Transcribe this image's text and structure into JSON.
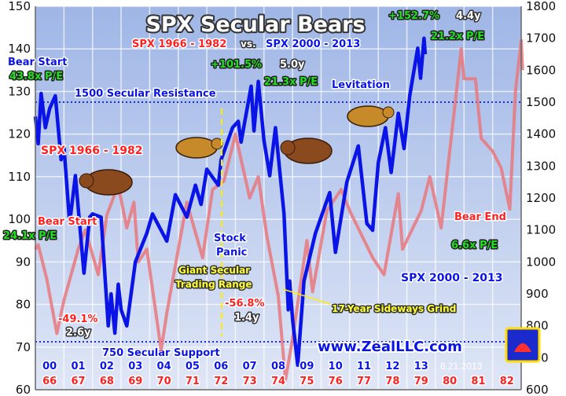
{
  "chart_data": {
    "type": "line",
    "title": "SPX Secular Bears",
    "subtitle": {
      "left": "SPX 1966 - 1982",
      "mid": "vs.",
      "right": "SPX 2000 - 2013"
    },
    "left_axis": {
      "range": [
        60,
        150
      ],
      "ticks": [
        "60",
        "70",
        "80",
        "90",
        "100",
        "110",
        "120",
        "130",
        "140",
        "150"
      ]
    },
    "right_axis": {
      "range": [
        600,
        1800
      ],
      "ticks": [
        "600",
        "700",
        "800",
        "900",
        "1000",
        "1100",
        "1200",
        "1300",
        "1400",
        "1500",
        "1600",
        "1700",
        "1800"
      ]
    },
    "x_labels_blue": [
      "00",
      "01",
      "02",
      "03",
      "04",
      "05",
      "06",
      "07",
      "08",
      "09",
      "10",
      "11",
      "12",
      "13"
    ],
    "x_labels_red": [
      "66",
      "67",
      "68",
      "69",
      "70",
      "71",
      "72",
      "73",
      "74",
      "75",
      "76",
      "77",
      "78",
      "79",
      "80",
      "81",
      "82"
    ],
    "grid": true,
    "colors": {
      "blue_series": "#0a14e6",
      "red_series": "#e8787c",
      "background_top": "#9fb6e6",
      "background_bottom": "#d8e2f4",
      "green_label": "#22dd22",
      "yellow_label": "#ffff33"
    },
    "series": [
      {
        "name": "SPX 2000 - 2013",
        "axis": "right",
        "color": "#0a14e6",
        "points": [
          [
            2000.0,
            1455
          ],
          [
            2000.1,
            1370
          ],
          [
            2000.2,
            1527
          ],
          [
            2000.35,
            1420
          ],
          [
            2000.5,
            1480
          ],
          [
            2000.7,
            1520
          ],
          [
            2000.9,
            1320
          ],
          [
            2001.0,
            1360
          ],
          [
            2001.2,
            1120
          ],
          [
            2001.4,
            1270
          ],
          [
            2001.7,
            965
          ],
          [
            2001.9,
            1140
          ],
          [
            2002.0,
            1150
          ],
          [
            2002.3,
            1140
          ],
          [
            2002.55,
            800
          ],
          [
            2002.65,
            900
          ],
          [
            2002.78,
            777
          ],
          [
            2002.9,
            930
          ],
          [
            2003.0,
            850
          ],
          [
            2003.2,
            800
          ],
          [
            2003.5,
            1000
          ],
          [
            2003.9,
            1090
          ],
          [
            2004.1,
            1150
          ],
          [
            2004.6,
            1065
          ],
          [
            2004.9,
            1210
          ],
          [
            2005.3,
            1140
          ],
          [
            2005.6,
            1240
          ],
          [
            2005.8,
            1180
          ],
          [
            2006.0,
            1290
          ],
          [
            2006.4,
            1240
          ],
          [
            2006.5,
            1320
          ],
          [
            2006.9,
            1420
          ],
          [
            2007.1,
            1440
          ],
          [
            2007.2,
            1375
          ],
          [
            2007.55,
            1550
          ],
          [
            2007.65,
            1410
          ],
          [
            2007.8,
            1565
          ],
          [
            2008.0,
            1380
          ],
          [
            2008.2,
            1270
          ],
          [
            2008.4,
            1420
          ],
          [
            2008.7,
            1150
          ],
          [
            2008.85,
            850
          ],
          [
            2008.9,
            940
          ],
          [
            2009.0,
            820
          ],
          [
            2009.18,
            677
          ],
          [
            2009.4,
            940
          ],
          [
            2009.8,
            1090
          ],
          [
            2010.3,
            1217
          ],
          [
            2010.5,
            1030
          ],
          [
            2010.9,
            1250
          ],
          [
            2011.3,
            1363
          ],
          [
            2011.6,
            1120
          ],
          [
            2011.8,
            1099
          ],
          [
            2012.0,
            1310
          ],
          [
            2012.25,
            1420
          ],
          [
            2012.45,
            1280
          ],
          [
            2012.7,
            1465
          ],
          [
            2012.9,
            1355
          ],
          [
            2013.1,
            1520
          ],
          [
            2013.38,
            1669
          ],
          [
            2013.48,
            1575
          ],
          [
            2013.6,
            1700
          ],
          [
            2013.64,
            1650
          ]
        ]
      },
      {
        "name": "SPX 1966 - 1982",
        "axis": "left",
        "color": "#e8787c",
        "points": [
          [
            1966.0,
            93
          ],
          [
            1966.1,
            94
          ],
          [
            1966.4,
            86
          ],
          [
            1966.75,
            73.2
          ],
          [
            1967.0,
            81
          ],
          [
            1967.5,
            93
          ],
          [
            1967.75,
            97.5
          ],
          [
            1968.2,
            87
          ],
          [
            1968.5,
            101
          ],
          [
            1968.9,
            108
          ],
          [
            1969.2,
            98
          ],
          [
            1969.45,
            104
          ],
          [
            1969.6,
            90
          ],
          [
            1969.9,
            93
          ],
          [
            1970.4,
            69.3
          ],
          [
            1970.6,
            78
          ],
          [
            1971.0,
            93
          ],
          [
            1971.3,
            104
          ],
          [
            1971.85,
            91
          ],
          [
            1972.2,
            107
          ],
          [
            1972.6,
            109
          ],
          [
            1973.0,
            120
          ],
          [
            1973.5,
            105
          ],
          [
            1973.8,
            110
          ],
          [
            1974.1,
            96
          ],
          [
            1974.5,
            82
          ],
          [
            1974.75,
            62.3
          ],
          [
            1975.0,
            72
          ],
          [
            1975.5,
            95
          ],
          [
            1975.7,
            83
          ],
          [
            1976.2,
            102
          ],
          [
            1976.7,
            107
          ],
          [
            1977.0,
            102
          ],
          [
            1977.8,
            91
          ],
          [
            1978.2,
            87
          ],
          [
            1978.7,
            106
          ],
          [
            1978.85,
            93
          ],
          [
            1979.5,
            102
          ],
          [
            1979.8,
            110
          ],
          [
            1980.2,
            98
          ],
          [
            1980.5,
            116
          ],
          [
            1980.9,
            140
          ],
          [
            1981.0,
            133
          ],
          [
            1981.4,
            133
          ],
          [
            1981.6,
            119
          ],
          [
            1982.0,
            116
          ],
          [
            1982.3,
            112
          ],
          [
            1982.6,
            102.4
          ],
          [
            1982.8,
            130
          ],
          [
            1983.0,
            142
          ],
          [
            1983.05,
            135
          ]
        ]
      }
    ],
    "reference_lines": [
      {
        "label": "1500 Secular Resistance",
        "value": 1500,
        "axis": "right"
      },
      {
        "label": "750 Secular Support",
        "value": 750,
        "axis": "right"
      }
    ],
    "annotations": {
      "bear_start_blue": "Bear Start",
      "pe_blue_start": "43.8x P/E",
      "bear_start_red": "Bear Start",
      "pe_red_start": "24.1x P/E",
      "red_series_label": "SPX 1966 - 1982",
      "blue_series_label": "SPX 2000 - 2013",
      "gain_2007": "+101.5%",
      "gain_2007_time": "5.0y",
      "pe_2007": "21.3x P/E",
      "gain_2013": "+152.7%",
      "gain_2013_time": "4.4y",
      "pe_2013": "21.2x P/E",
      "levitation": "Levitation",
      "stock_panic_1": "Stock",
      "stock_panic_2": "Panic",
      "range_1": "Giant Secular",
      "range_2": "Trading Range",
      "loss_2002": "-49.1%",
      "loss_2002_time": "2.6y",
      "loss_2009": "-56.8%",
      "loss_2009_time": "1.4y",
      "grind": "17-Year Sideways Grind",
      "bear_end": "Bear End",
      "pe_end": "6.6x P/E",
      "website": "www.ZealLLC.com",
      "date": "8.21.2013"
    }
  }
}
